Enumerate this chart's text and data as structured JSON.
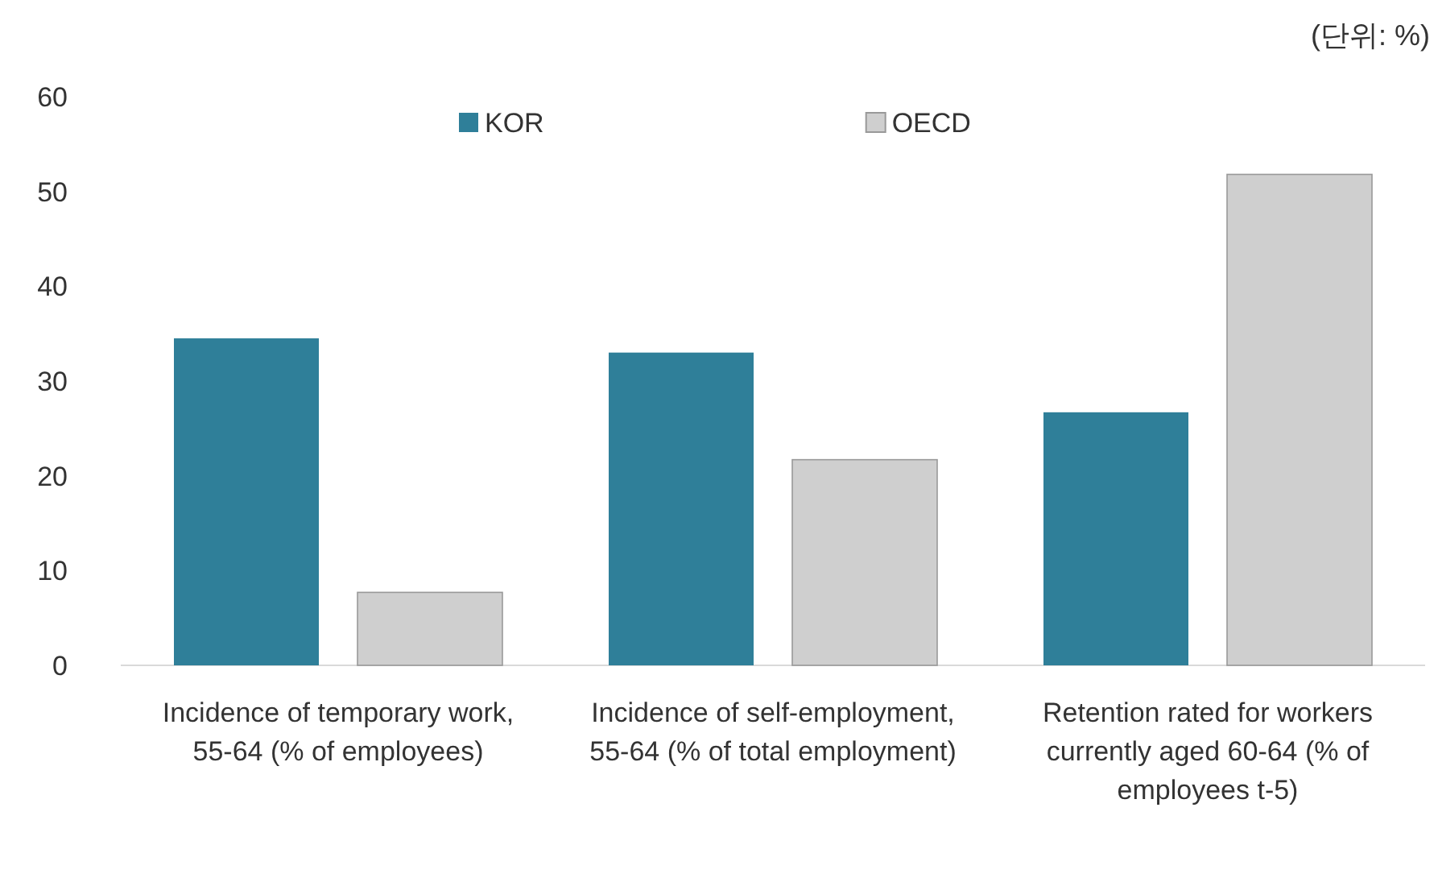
{
  "chart_data": {
    "type": "bar",
    "annotations": [
      "(단위: %)"
    ],
    "categories": [
      "Incidence of temporary work, 55-64 (% of employees)",
      "Incidence of self-employment, 55-64 (% of total employment)",
      "Retention rated for workers currently aged 60-64 (% of employees t-5)"
    ],
    "series": [
      {
        "name": "KOR",
        "color": "#2f7f99",
        "values": [
          34.5,
          33,
          26.7
        ]
      },
      {
        "name": "OECD",
        "color": "#cfcfcf",
        "values": [
          7.7,
          21.7,
          51.8
        ]
      }
    ],
    "ylim": [
      0,
      60
    ],
    "yticks": [
      0,
      10,
      20,
      30,
      40,
      50,
      60
    ],
    "legend": "top"
  }
}
